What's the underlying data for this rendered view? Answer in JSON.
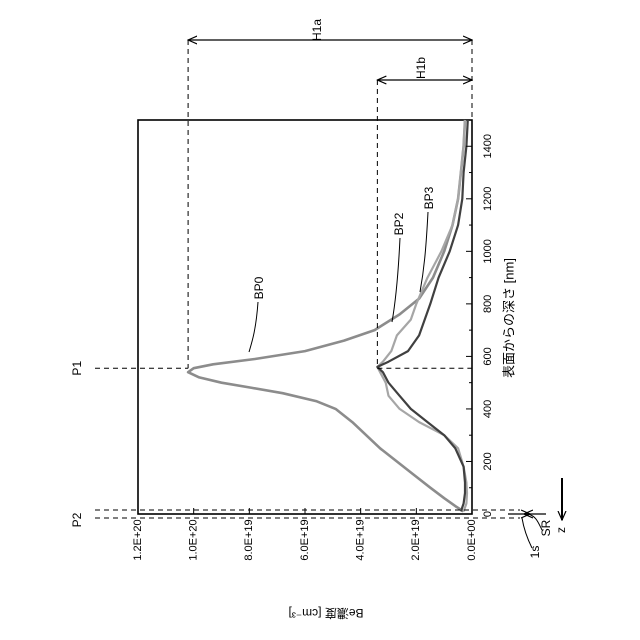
{
  "chart_data": {
    "type": "line",
    "orientation": "rotated-90-counterclockwise",
    "xlabel": "表面からの深さ [nm]",
    "ylabel": "Be濃度 [cm⁻³]",
    "xlim": [
      0,
      1500
    ],
    "ylim": [
      0,
      1.2e+20
    ],
    "x_ticks": [
      "0",
      "200",
      "400",
      "600",
      "800",
      "1000",
      "1200",
      "1400"
    ],
    "y_ticks": [
      "0.0E+00",
      "2.0E+19",
      "4.0E+19",
      "6.0E+19",
      "8.0E+19",
      "1.0E+20",
      "1.2E+20"
    ],
    "x_tick_values": [
      0,
      200,
      400,
      600,
      800,
      1000,
      1200,
      1400
    ],
    "y_tick_values": [
      0,
      2e+19,
      4e+19,
      6e+19,
      8e+19,
      1e+20,
      1.2e+20
    ],
    "grid": false,
    "series": [
      {
        "name": "BP0",
        "color": "#8c8c8c",
        "x": [
          10,
          30,
          60,
          100,
          150,
          200,
          250,
          300,
          350,
          400,
          430,
          460,
          480,
          500,
          520,
          540,
          555,
          570,
          590,
          620,
          660,
          700,
          760,
          820,
          900,
          1000,
          1100,
          1200,
          1300,
          1400,
          1500
        ],
        "y": [
          3e+18,
          6e+18,
          1e+19,
          1.5e+19,
          2.1e+19,
          2.7e+19,
          3.3e+19,
          3.8e+19,
          4.3e+19,
          4.9e+19,
          5.6e+19,
          6.8e+19,
          7.9e+19,
          9e+19,
          9.8e+19,
          1.02e+20,
          1e+20,
          9.3e+19,
          7.8e+19,
          6e+19,
          4.6e+19,
          3.5e+19,
          2.6e+19,
          1.9e+19,
          1.4e+19,
          1e+19,
          7e+18,
          5e+18,
          4e+18,
          3e+18,
          2.5e+18
        ]
      },
      {
        "name": "BP2",
        "color": "#a6a6a6",
        "x": [
          10,
          40,
          80,
          120,
          180,
          250,
          300,
          350,
          400,
          450,
          500,
          540,
          560,
          580,
          620,
          680,
          740,
          800,
          900,
          1000,
          1100,
          1200,
          1300,
          1400,
          1500
        ],
        "y": [
          3e+18,
          2e+18,
          1.8e+18,
          2e+18,
          3e+18,
          5e+18,
          1e+19,
          1.9e+19,
          2.6e+19,
          3e+19,
          3.1e+19,
          3.3e+19,
          3.4e+19,
          3.2e+19,
          2.9e+19,
          2.7e+19,
          2.2e+19,
          2e+19,
          1.6e+19,
          1.1e+19,
          7e+18,
          5e+18,
          4e+18,
          3e+18,
          2.5e+18
        ]
      },
      {
        "name": "BP3",
        "color": "#404040",
        "x": [
          10,
          40,
          80,
          120,
          180,
          250,
          300,
          350,
          400,
          450,
          500,
          540,
          560,
          580,
          620,
          680,
          740,
          800,
          900,
          1000,
          1100,
          1200,
          1300,
          1400,
          1500
        ],
        "y": [
          4e+18,
          3e+18,
          2.5e+18,
          2.5e+18,
          3e+18,
          6e+18,
          1e+19,
          1.6e+19,
          2.2e+19,
          2.6e+19,
          3e+19,
          3.2e+19,
          3.4e+19,
          3e+19,
          2.3e+19,
          1.9e+19,
          1.7e+19,
          1.5e+19,
          1.2e+19,
          8e+18,
          5e+18,
          3.5e+18,
          3e+18,
          2e+18,
          1.5e+18
        ]
      }
    ],
    "annotations": {
      "H1a": "H1a",
      "H1b": "H1b",
      "P1": "P1",
      "P2": "P2",
      "SR": "SR",
      "s1": "1s",
      "z": "z",
      "BP0": "BP0",
      "BP2": "BP2",
      "BP3": "BP3"
    }
  }
}
